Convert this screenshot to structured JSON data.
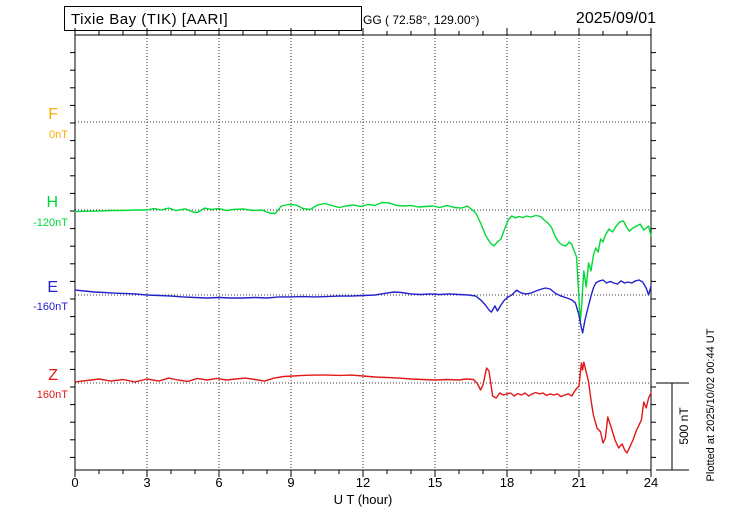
{
  "header": {
    "title": "Tixie Bay (TIK)  [AARI]",
    "coords": "GG ( 72.58°, 129.00°)",
    "date": "2025/09/01"
  },
  "axis": {
    "x_label": "U T (hour)",
    "x_ticks": [
      "0",
      "3",
      "6",
      "9",
      "12",
      "15",
      "18",
      "21",
      "24"
    ]
  },
  "scale_bar": {
    "label": "500 nT"
  },
  "footer": {
    "plotted_at": "Plotted at 2025/10/02 00:44 UT"
  },
  "chart_data": {
    "type": "line",
    "title": "Tixie Bay (TIK) [AARI] magnetogram for 2025/09/01",
    "xlabel": "U T (hour)",
    "x_range_hours": [
      0,
      24
    ],
    "x_major_tick_hours": 3,
    "x_minor_tick_hours": 1,
    "y_tick_nt": 100,
    "scale_bar_nt": 500,
    "grid": "dotted vertical lines every 3 h; dotted horizontal line at each channel baseline",
    "channels": [
      {
        "name": "F",
        "color": "#ffaa00",
        "baseline_label": "0nT",
        "baseline_nt": 0,
        "points": []
      },
      {
        "name": "H",
        "color": "#00d935",
        "baseline_label": "-120nT",
        "baseline_nt": -120,
        "points": [
          [
            0,
            -129
          ],
          [
            0.5,
            -127
          ],
          [
            1,
            -126
          ],
          [
            1.5,
            -123
          ],
          [
            2,
            -123
          ],
          [
            2.5,
            -120
          ],
          [
            3,
            -120
          ],
          [
            3.3,
            -112
          ],
          [
            3.6,
            -120
          ],
          [
            3.9,
            -109
          ],
          [
            4.2,
            -123
          ],
          [
            4.6,
            -114
          ],
          [
            4.9,
            -131
          ],
          [
            5.1,
            -134
          ],
          [
            5.4,
            -109
          ],
          [
            5.7,
            -117
          ],
          [
            6,
            -112
          ],
          [
            6.3,
            -123
          ],
          [
            6.6,
            -117
          ],
          [
            7,
            -114
          ],
          [
            7.4,
            -123
          ],
          [
            7.8,
            -120
          ],
          [
            8.1,
            -137
          ],
          [
            8.35,
            -140
          ],
          [
            8.6,
            -97
          ],
          [
            8.9,
            -89
          ],
          [
            9.2,
            -91
          ],
          [
            9.5,
            -112
          ],
          [
            9.8,
            -117
          ],
          [
            10.1,
            -92
          ],
          [
            10.4,
            -83
          ],
          [
            10.7,
            -94
          ],
          [
            11,
            -106
          ],
          [
            11.3,
            -97
          ],
          [
            11.6,
            -91
          ],
          [
            11.9,
            -100
          ],
          [
            12.2,
            -89
          ],
          [
            12.5,
            -94
          ],
          [
            12.8,
            -77
          ],
          [
            13.1,
            -80
          ],
          [
            13.4,
            -94
          ],
          [
            13.7,
            -97
          ],
          [
            14,
            -94
          ],
          [
            14.3,
            -103
          ],
          [
            14.6,
            -100
          ],
          [
            14.9,
            -97
          ],
          [
            15.2,
            -106
          ],
          [
            15.5,
            -94
          ],
          [
            15.8,
            -106
          ],
          [
            16.1,
            -109
          ],
          [
            16.35,
            -97
          ],
          [
            16.5,
            -114
          ],
          [
            16.7,
            -137
          ],
          [
            16.9,
            -194
          ],
          [
            17.1,
            -262
          ],
          [
            17.3,
            -307
          ],
          [
            17.45,
            -324
          ],
          [
            17.6,
            -302
          ],
          [
            17.75,
            -285
          ],
          [
            17.9,
            -228
          ],
          [
            18.05,
            -177
          ],
          [
            18.2,
            -154
          ],
          [
            18.35,
            -165
          ],
          [
            18.5,
            -157
          ],
          [
            18.65,
            -163
          ],
          [
            18.8,
            -154
          ],
          [
            19,
            -160
          ],
          [
            19.2,
            -151
          ],
          [
            19.4,
            -157
          ],
          [
            19.55,
            -177
          ],
          [
            19.7,
            -194
          ],
          [
            19.85,
            -217
          ],
          [
            20,
            -268
          ],
          [
            20.15,
            -302
          ],
          [
            20.3,
            -319
          ],
          [
            20.45,
            -324
          ],
          [
            20.6,
            -302
          ],
          [
            20.7,
            -316
          ],
          [
            20.8,
            -353
          ],
          [
            20.9,
            -387
          ],
          [
            21,
            -625
          ],
          [
            21.05,
            -760
          ],
          [
            21.1,
            -682
          ],
          [
            21.2,
            -466
          ],
          [
            21.3,
            -557
          ],
          [
            21.4,
            -421
          ],
          [
            21.5,
            -466
          ],
          [
            21.6,
            -376
          ],
          [
            21.7,
            -336
          ],
          [
            21.8,
            -359
          ],
          [
            21.9,
            -285
          ],
          [
            22,
            -302
          ],
          [
            22.1,
            -262
          ],
          [
            22.25,
            -228
          ],
          [
            22.4,
            -245
          ],
          [
            22.55,
            -211
          ],
          [
            22.7,
            -188
          ],
          [
            22.85,
            -182
          ],
          [
            23,
            -222
          ],
          [
            23.1,
            -240
          ],
          [
            23.25,
            -222
          ],
          [
            23.4,
            -211
          ],
          [
            23.55,
            -200
          ],
          [
            23.7,
            -234
          ],
          [
            23.8,
            -222
          ],
          [
            23.9,
            -211
          ],
          [
            24,
            -268
          ]
        ]
      },
      {
        "name": "E",
        "color": "#2222cc",
        "baseline_label": "-160nT",
        "baseline_nt": -160,
        "points": [
          [
            0,
            -132
          ],
          [
            0.4,
            -137
          ],
          [
            0.8,
            -143
          ],
          [
            1.2,
            -146
          ],
          [
            1.6,
            -149
          ],
          [
            2,
            -151
          ],
          [
            2.5,
            -154
          ],
          [
            3,
            -160
          ],
          [
            3.5,
            -163
          ],
          [
            4,
            -166
          ],
          [
            4.5,
            -171
          ],
          [
            5,
            -174
          ],
          [
            5.5,
            -177
          ],
          [
            6,
            -174
          ],
          [
            6.5,
            -177
          ],
          [
            7,
            -177
          ],
          [
            7.5,
            -174
          ],
          [
            8,
            -177
          ],
          [
            8.5,
            -171
          ],
          [
            9,
            -171
          ],
          [
            9.5,
            -169
          ],
          [
            10,
            -171
          ],
          [
            10.5,
            -169
          ],
          [
            11,
            -166
          ],
          [
            11.5,
            -166
          ],
          [
            12,
            -163
          ],
          [
            12.5,
            -160
          ],
          [
            12.9,
            -151
          ],
          [
            13.3,
            -143
          ],
          [
            13.6,
            -146
          ],
          [
            14,
            -154
          ],
          [
            14.4,
            -157
          ],
          [
            14.8,
            -154
          ],
          [
            15.2,
            -157
          ],
          [
            15.6,
            -154
          ],
          [
            16,
            -157
          ],
          [
            16.4,
            -160
          ],
          [
            16.7,
            -166
          ],
          [
            16.9,
            -188
          ],
          [
            17.1,
            -217
          ],
          [
            17.25,
            -245
          ],
          [
            17.35,
            -257
          ],
          [
            17.5,
            -222
          ],
          [
            17.6,
            -251
          ],
          [
            17.75,
            -217
          ],
          [
            17.9,
            -188
          ],
          [
            18.05,
            -171
          ],
          [
            18.2,
            -160
          ],
          [
            18.4,
            -132
          ],
          [
            18.6,
            -149
          ],
          [
            18.8,
            -154
          ],
          [
            19,
            -149
          ],
          [
            19.2,
            -137
          ],
          [
            19.45,
            -126
          ],
          [
            19.6,
            -120
          ],
          [
            19.8,
            -126
          ],
          [
            20,
            -149
          ],
          [
            20.25,
            -166
          ],
          [
            20.5,
            -177
          ],
          [
            20.7,
            -188
          ],
          [
            20.85,
            -205
          ],
          [
            21,
            -274
          ],
          [
            21.1,
            -347
          ],
          [
            21.15,
            -376
          ],
          [
            21.25,
            -302
          ],
          [
            21.35,
            -245
          ],
          [
            21.5,
            -166
          ],
          [
            21.6,
            -120
          ],
          [
            21.7,
            -92
          ],
          [
            21.85,
            -80
          ],
          [
            22,
            -75
          ],
          [
            22.15,
            -92
          ],
          [
            22.3,
            -83
          ],
          [
            22.45,
            -92
          ],
          [
            22.6,
            -98
          ],
          [
            22.75,
            -80
          ],
          [
            22.9,
            -92
          ],
          [
            23.05,
            -86
          ],
          [
            23.2,
            -92
          ],
          [
            23.35,
            -80
          ],
          [
            23.5,
            -75
          ],
          [
            23.65,
            -86
          ],
          [
            23.8,
            -120
          ],
          [
            23.9,
            -160
          ],
          [
            24,
            -109
          ]
        ]
      },
      {
        "name": "Z",
        "color": "#e01818",
        "baseline_label": "160nT",
        "baseline_nt": 160,
        "points": [
          [
            0,
            166
          ],
          [
            0.5,
            174
          ],
          [
            1,
            183
          ],
          [
            1.5,
            171
          ],
          [
            2,
            180
          ],
          [
            2.5,
            166
          ],
          [
            3,
            183
          ],
          [
            3.5,
            171
          ],
          [
            3.9,
            188
          ],
          [
            4.3,
            177
          ],
          [
            4.7,
            169
          ],
          [
            5.1,
            186
          ],
          [
            5.5,
            177
          ],
          [
            5.9,
            186
          ],
          [
            6.3,
            177
          ],
          [
            6.7,
            183
          ],
          [
            7.1,
            188
          ],
          [
            7.5,
            180
          ],
          [
            7.9,
            171
          ],
          [
            8.3,
            188
          ],
          [
            8.7,
            197
          ],
          [
            9.1,
            200
          ],
          [
            9.5,
            203
          ],
          [
            10,
            205
          ],
          [
            10.5,
            205
          ],
          [
            11,
            203
          ],
          [
            11.5,
            205
          ],
          [
            12,
            200
          ],
          [
            12.5,
            194
          ],
          [
            13,
            191
          ],
          [
            13.5,
            188
          ],
          [
            14,
            183
          ],
          [
            14.5,
            180
          ],
          [
            15,
            177
          ],
          [
            15.5,
            180
          ],
          [
            16,
            177
          ],
          [
            16.3,
            183
          ],
          [
            16.6,
            180
          ],
          [
            16.75,
            160
          ],
          [
            16.9,
            120
          ],
          [
            17,
            149
          ],
          [
            17.15,
            245
          ],
          [
            17.25,
            228
          ],
          [
            17.4,
            86
          ],
          [
            17.55,
            75
          ],
          [
            17.7,
            103
          ],
          [
            17.85,
            92
          ],
          [
            18,
            98
          ],
          [
            18.15,
            103
          ],
          [
            18.3,
            86
          ],
          [
            18.45,
            100
          ],
          [
            18.6,
            92
          ],
          [
            18.75,
            103
          ],
          [
            18.9,
            86
          ],
          [
            19.05,
            98
          ],
          [
            19.2,
            106
          ],
          [
            19.35,
            98
          ],
          [
            19.5,
            103
          ],
          [
            19.65,
            89
          ],
          [
            19.8,
            98
          ],
          [
            19.95,
            92
          ],
          [
            20.1,
            98
          ],
          [
            20.25,
            83
          ],
          [
            20.4,
            92
          ],
          [
            20.55,
            98
          ],
          [
            20.7,
            86
          ],
          [
            20.85,
            120
          ],
          [
            21,
            143
          ],
          [
            21.1,
            274
          ],
          [
            21.15,
            234
          ],
          [
            21.2,
            279
          ],
          [
            21.3,
            222
          ],
          [
            21.4,
            166
          ],
          [
            21.5,
            63
          ],
          [
            21.6,
            -22
          ],
          [
            21.75,
            -96
          ],
          [
            21.9,
            -118
          ],
          [
            22,
            -181
          ],
          [
            22.1,
            -152
          ],
          [
            22.2,
            -33
          ],
          [
            22.35,
            -96
          ],
          [
            22.5,
            -164
          ],
          [
            22.65,
            -209
          ],
          [
            22.8,
            -186
          ],
          [
            22.9,
            -220
          ],
          [
            23,
            -238
          ],
          [
            23.1,
            -209
          ],
          [
            23.25,
            -164
          ],
          [
            23.4,
            -107
          ],
          [
            23.5,
            -79
          ],
          [
            23.6,
            -50
          ],
          [
            23.7,
            52
          ],
          [
            23.8,
            18
          ],
          [
            23.9,
            75
          ],
          [
            24,
            103
          ]
        ]
      }
    ]
  }
}
